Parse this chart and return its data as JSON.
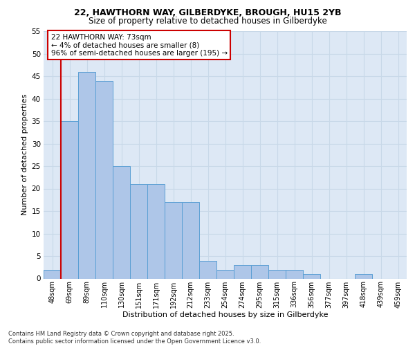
{
  "title1": "22, HAWTHORN WAY, GILBERDYKE, BROUGH, HU15 2YB",
  "title2": "Size of property relative to detached houses in Gilberdyke",
  "xlabel": "Distribution of detached houses by size in Gilberdyke",
  "ylabel": "Number of detached properties",
  "categories": [
    "48sqm",
    "69sqm",
    "89sqm",
    "110sqm",
    "130sqm",
    "151sqm",
    "171sqm",
    "192sqm",
    "212sqm",
    "233sqm",
    "254sqm",
    "274sqm",
    "295sqm",
    "315sqm",
    "336sqm",
    "356sqm",
    "377sqm",
    "397sqm",
    "418sqm",
    "439sqm",
    "459sqm"
  ],
  "values": [
    2,
    35,
    46,
    44,
    25,
    21,
    21,
    17,
    17,
    4,
    2,
    3,
    3,
    2,
    2,
    1,
    0,
    0,
    1,
    0,
    0
  ],
  "bar_color": "#aec6e8",
  "bar_edge_color": "#5a9fd4",
  "grid_color": "#c8d8e8",
  "bg_color": "#dde8f5",
  "vline_color": "#cc0000",
  "annotation_text": "22 HAWTHORN WAY: 73sqm\n← 4% of detached houses are smaller (8)\n96% of semi-detached houses are larger (195) →",
  "annotation_box_color": "#ffffff",
  "annotation_box_edge": "#cc0000",
  "footer_text": "Contains HM Land Registry data © Crown copyright and database right 2025.\nContains public sector information licensed under the Open Government Licence v3.0.",
  "ylim": [
    0,
    55
  ],
  "yticks": [
    0,
    5,
    10,
    15,
    20,
    25,
    30,
    35,
    40,
    45,
    50,
    55
  ]
}
